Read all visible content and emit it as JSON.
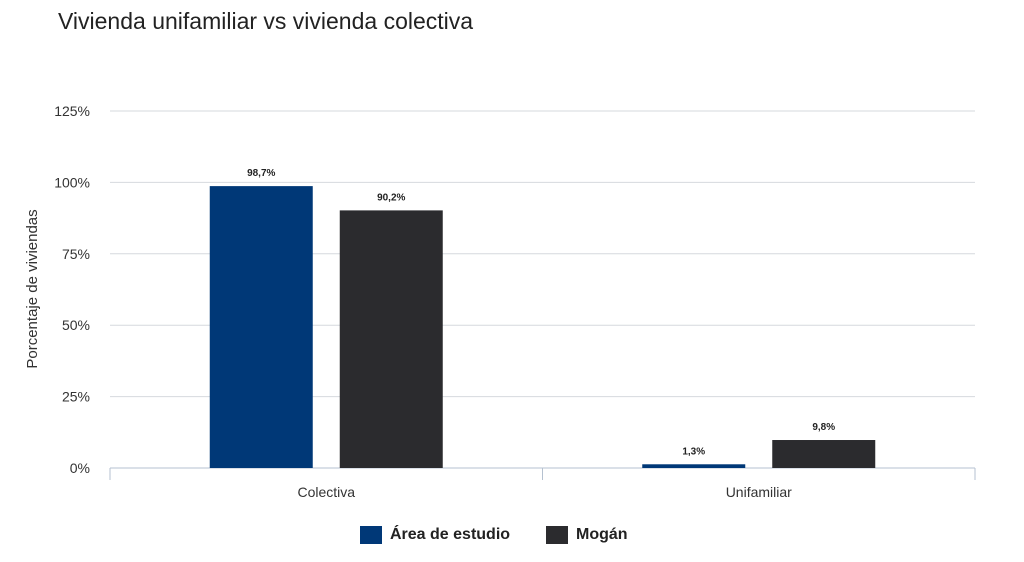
{
  "chart_data": {
    "type": "bar",
    "title": "Vivienda unifamiliar vs vivienda colectiva",
    "xlabel": "",
    "ylabel": "Porcentaje de viviendas",
    "categories": [
      "Colectiva",
      "Unifamiliar"
    ],
    "series": [
      {
        "name": "Área de estudio",
        "values": [
          98.7,
          1.3
        ],
        "labels": [
          "98,7%",
          "1,3%"
        ],
        "color": "#003877"
      },
      {
        "name": "Mogán",
        "values": [
          90.2,
          9.8
        ],
        "labels": [
          "90,2%",
          "9,8%"
        ],
        "color": "#2b2b2e"
      }
    ],
    "ylim": [
      0,
      125
    ],
    "yticks": [
      0,
      25,
      50,
      75,
      100,
      125
    ],
    "ytick_labels": [
      "0%",
      "25%",
      "50%",
      "75%",
      "100%",
      "125%"
    ],
    "grid": true,
    "legend_position": "bottom-center"
  }
}
